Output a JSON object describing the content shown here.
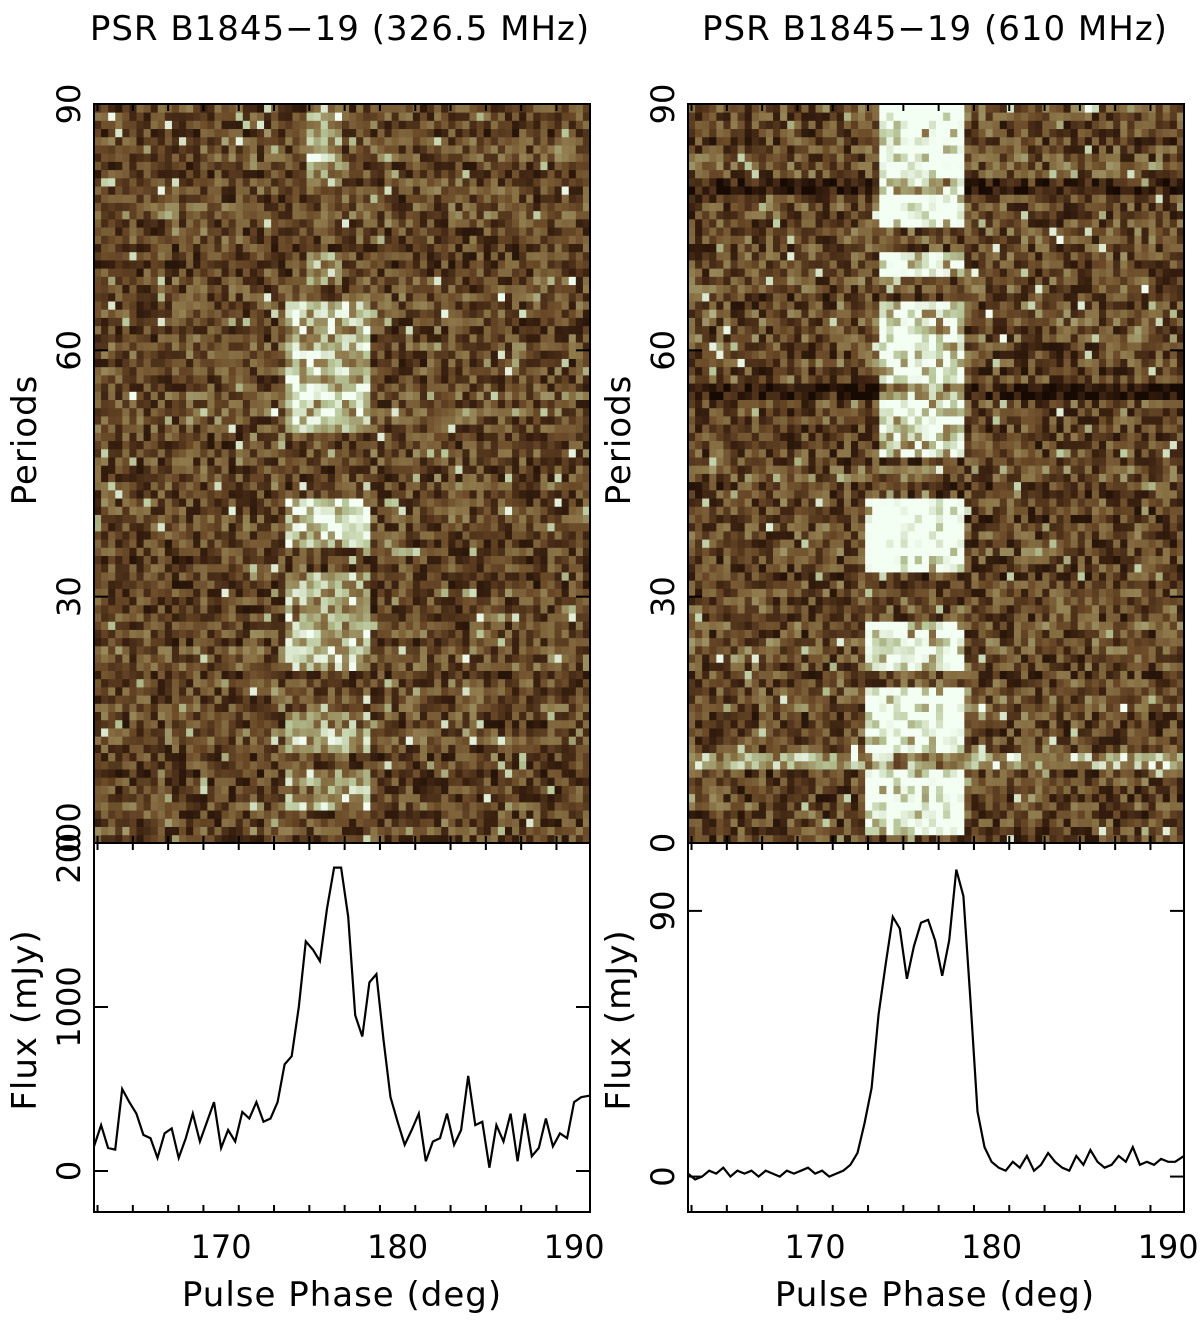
{
  "chart_data": [
    {
      "type": "heatmap",
      "title": "PSR B1845−19 (326.5 MHz)",
      "ylabel": "Periods",
      "xlim": [
        162.8,
        190.9
      ],
      "ylim": [
        0,
        90
      ],
      "yticks": [
        90,
        60,
        30,
        0
      ],
      "colormap": [
        "#170a03",
        "#3a2110",
        "#6b4a28",
        "#8f7a4c",
        "#b8c79a",
        "#f4fff4"
      ],
      "emission_bands": [
        {
          "phase_start": 173.5,
          "phase_end": 178.5,
          "period_start": 4,
          "period_end": 9,
          "strength": 0.35
        },
        {
          "phase_start": 173.5,
          "phase_end": 178.5,
          "period_start": 11,
          "period_end": 16,
          "strength": 0.3
        },
        {
          "phase_start": 173.5,
          "phase_end": 178.5,
          "period_start": 21,
          "period_end": 33,
          "strength": 0.4
        },
        {
          "phase_start": 173.5,
          "phase_end": 178.5,
          "period_start": 36,
          "period_end": 42,
          "strength": 0.55
        },
        {
          "phase_start": 173.5,
          "phase_end": 178.5,
          "period_start": 50,
          "period_end": 66,
          "strength": 0.45
        },
        {
          "phase_start": 175,
          "phase_end": 177,
          "period_start": 68,
          "period_end": 72,
          "strength": 0.4
        },
        {
          "phase_start": 175,
          "phase_end": 177,
          "period_start": 80,
          "period_end": 90,
          "strength": 0.35
        }
      ],
      "noise_level": 0.24
    },
    {
      "type": "line",
      "ylabel": "Flux (mJy)",
      "xlabel": "Pulse Phase (deg)",
      "xlim": [
        162.8,
        190.9
      ],
      "ylim": [
        -250,
        2000
      ],
      "yticks": [
        2000,
        1000,
        0
      ],
      "xticks": [
        170,
        180,
        190
      ],
      "x": [
        162.8,
        163.2,
        163.6,
        164.0,
        164.4,
        164.8,
        165.2,
        165.6,
        166.0,
        166.4,
        166.8,
        167.2,
        167.6,
        168.0,
        168.4,
        168.8,
        169.2,
        169.6,
        170.0,
        170.4,
        170.8,
        171.2,
        171.6,
        172.0,
        172.4,
        172.8,
        173.2,
        173.6,
        174.0,
        174.4,
        174.8,
        175.2,
        175.6,
        176.0,
        176.4,
        176.8,
        177.2,
        177.6,
        178.0,
        178.4,
        178.8,
        179.2,
        179.6,
        180.0,
        180.4,
        180.8,
        181.2,
        181.6,
        182.0,
        182.4,
        182.8,
        183.2,
        183.6,
        184.0,
        184.4,
        184.8,
        185.2,
        185.6,
        186.0,
        186.4,
        186.8,
        187.2,
        187.6,
        188.0,
        188.4,
        188.8,
        189.2,
        189.6,
        190.0,
        190.4,
        190.9
      ],
      "y": [
        150,
        280,
        140,
        130,
        500,
        420,
        350,
        220,
        200,
        80,
        230,
        260,
        80,
        200,
        350,
        180,
        300,
        420,
        140,
        250,
        180,
        360,
        320,
        420,
        300,
        320,
        420,
        650,
        700,
        1000,
        1400,
        1350,
        1280,
        1600,
        1850,
        1850,
        1550,
        950,
        820,
        1150,
        1200,
        800,
        450,
        300,
        160,
        250,
        350,
        60,
        180,
        200,
        350,
        160,
        250,
        580,
        280,
        300,
        20,
        280,
        180,
        350,
        60,
        350,
        90,
        140,
        320,
        150,
        230,
        200,
        420,
        450,
        460
      ]
    },
    {
      "type": "heatmap",
      "title": "PSR B1845−19 (610 MHz)",
      "ylabel": "Periods",
      "xlim": [
        162.8,
        190.9
      ],
      "ylim": [
        0,
        90
      ],
      "yticks": [
        90,
        60,
        30,
        0
      ],
      "colormap": [
        "#170a03",
        "#3a2110",
        "#6b4a28",
        "#8f7a4c",
        "#b8c79a",
        "#f4fff4"
      ],
      "emission_bands": [
        {
          "phase_start": 173.0,
          "phase_end": 178.5,
          "period_start": 1,
          "period_end": 9,
          "strength": 0.75
        },
        {
          "phase_start": 173.0,
          "phase_end": 178.5,
          "period_start": 11,
          "period_end": 19,
          "strength": 0.75
        },
        {
          "phase_start": 173.0,
          "phase_end": 178.5,
          "period_start": 21,
          "period_end": 27,
          "strength": 0.65
        },
        {
          "phase_start": 173.0,
          "phase_end": 178.5,
          "period_start": 33,
          "period_end": 42,
          "strength": 0.85
        },
        {
          "phase_start": 173.5,
          "phase_end": 178.5,
          "period_start": 47,
          "period_end": 66,
          "strength": 0.6
        },
        {
          "phase_start": 173.5,
          "phase_end": 178.5,
          "period_start": 69,
          "period_end": 72,
          "strength": 0.7
        },
        {
          "phase_start": 173.5,
          "phase_end": 178.5,
          "period_start": 75,
          "period_end": 90,
          "strength": 0.75
        }
      ],
      "bright_rows": [
        10
      ],
      "dark_rows": [
        55,
        80
      ],
      "noise_level": 0.26
    },
    {
      "type": "line",
      "ylabel": "Flux (mJy)",
      "xlabel": "Pulse Phase (deg)",
      "xlim": [
        162.8,
        190.9
      ],
      "ylim": [
        -12,
        113
      ],
      "yticks": [
        90,
        0
      ],
      "xticks": [
        170,
        180,
        190
      ],
      "x": [
        162.8,
        163.2,
        163.6,
        164.0,
        164.4,
        164.8,
        165.2,
        165.6,
        166.0,
        166.4,
        166.8,
        167.2,
        167.6,
        168.0,
        168.4,
        168.8,
        169.2,
        169.6,
        170.0,
        170.4,
        170.8,
        171.2,
        171.6,
        172.0,
        172.4,
        172.8,
        173.2,
        173.6,
        174.0,
        174.4,
        174.8,
        175.2,
        175.6,
        176.0,
        176.4,
        176.8,
        177.2,
        177.6,
        178.0,
        178.4,
        178.8,
        179.2,
        179.6,
        180.0,
        180.4,
        180.8,
        181.2,
        181.6,
        182.0,
        182.4,
        182.8,
        183.2,
        183.6,
        184.0,
        184.4,
        184.8,
        185.2,
        185.6,
        186.0,
        186.4,
        186.8,
        187.2,
        187.6,
        188.0,
        188.4,
        188.8,
        189.2,
        189.6,
        190.0,
        190.4,
        190.9
      ],
      "y": [
        1,
        -1,
        0,
        2,
        1,
        3,
        0,
        2,
        1,
        2,
        0,
        2,
        1,
        0,
        2,
        1,
        2,
        3,
        1,
        2,
        0,
        1,
        2,
        4,
        8,
        18,
        30,
        55,
        72,
        88,
        84,
        67,
        78,
        86,
        87,
        80,
        68,
        80,
        104,
        95,
        60,
        22,
        10,
        5,
        3,
        2,
        5,
        3,
        7,
        2,
        4,
        8,
        5,
        3,
        2,
        7,
        4,
        9,
        5,
        3,
        4,
        7,
        5,
        10,
        4,
        5,
        4,
        6,
        5,
        5,
        7
      ]
    }
  ]
}
